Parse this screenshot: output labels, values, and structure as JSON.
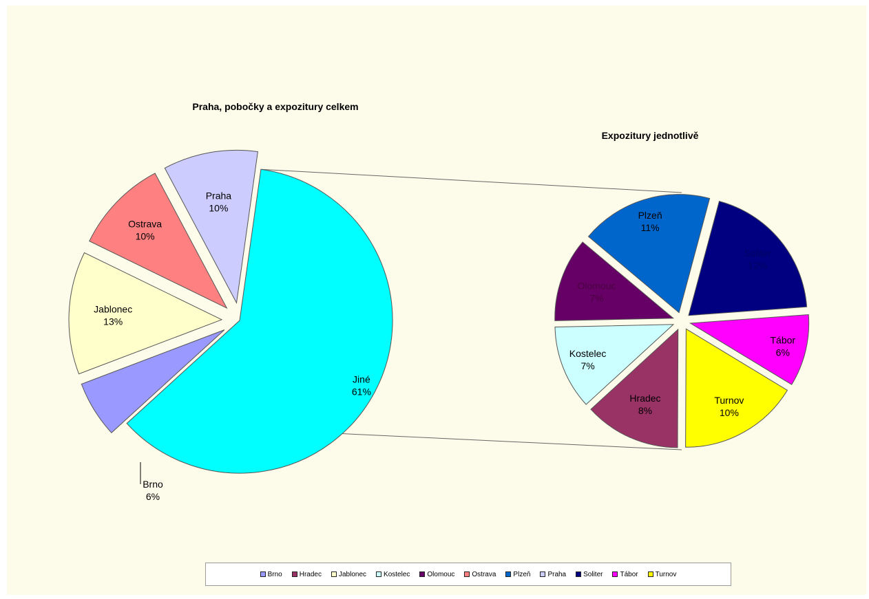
{
  "chart_data": [
    {
      "type": "pie",
      "title": "Praha, pobočky a expozitury celkem",
      "slices": [
        {
          "name": "Jiné",
          "value": 61,
          "label": "Jiné",
          "pct": "61%",
          "color": "#00ffff",
          "label_color": "#000000"
        },
        {
          "name": "Brno",
          "value": 6,
          "label": "Brno",
          "pct": "6%",
          "color": "#9999ff",
          "label_color": "#000000"
        },
        {
          "name": "Jablonec",
          "value": 13,
          "label": "Jablonec",
          "pct": "13%",
          "color": "#ffffcc",
          "label_color": "#000000"
        },
        {
          "name": "Ostrava",
          "value": 10,
          "label": "Ostrava",
          "pct": "10%",
          "color": "#ff8080",
          "label_color": "#000000"
        },
        {
          "name": "Praha",
          "value": 10,
          "label": "Praha",
          "pct": "10%",
          "color": "#ccccff",
          "label_color": "#000000"
        }
      ]
    },
    {
      "type": "pie",
      "title": "Expozitury jednotlivě",
      "slices": [
        {
          "name": "Soliter",
          "value": 12,
          "label": "Soliter",
          "pct": "12%",
          "color": "#000080",
          "label_color": "#000060"
        },
        {
          "name": "Tábor",
          "value": 6,
          "label": "Tábor",
          "pct": "6%",
          "color": "#ff00ff",
          "label_color": "#000000"
        },
        {
          "name": "Turnov",
          "value": 10,
          "label": "Turnov",
          "pct": "10%",
          "color": "#ffff00",
          "label_color": "#000000"
        },
        {
          "name": "Hradec",
          "value": 8,
          "label": "Hradec",
          "pct": "8%",
          "color": "#993366",
          "label_color": "#000000"
        },
        {
          "name": "Kostelec",
          "value": 7,
          "label": "Kostelec",
          "pct": "7%",
          "color": "#ccffff",
          "label_color": "#000000"
        },
        {
          "name": "Olomouc",
          "value": 7,
          "label": "Olomouc",
          "pct": "7%",
          "color": "#660066",
          "label_color": "#4a0040"
        },
        {
          "name": "Plzeň",
          "value": 11,
          "label": "Plzeň",
          "pct": "11%",
          "color": "#0066cc",
          "label_color": "#000000"
        }
      ]
    }
  ],
  "legend": [
    {
      "label": "Brno",
      "color": "#9999ff"
    },
    {
      "label": "Hradec",
      "color": "#993366"
    },
    {
      "label": "Jablonec",
      "color": "#ffffcc"
    },
    {
      "label": "Kostelec",
      "color": "#ccffff"
    },
    {
      "label": "Olomouc",
      "color": "#660066"
    },
    {
      "label": "Ostrava",
      "color": "#ff8080"
    },
    {
      "label": "Plzeň",
      "color": "#0066cc"
    },
    {
      "label": "Praha",
      "color": "#ccccff"
    },
    {
      "label": "Soliter",
      "color": "#000080"
    },
    {
      "label": "Tábor",
      "color": "#ff00ff"
    },
    {
      "label": "Turnov",
      "color": "#ffff00"
    }
  ]
}
